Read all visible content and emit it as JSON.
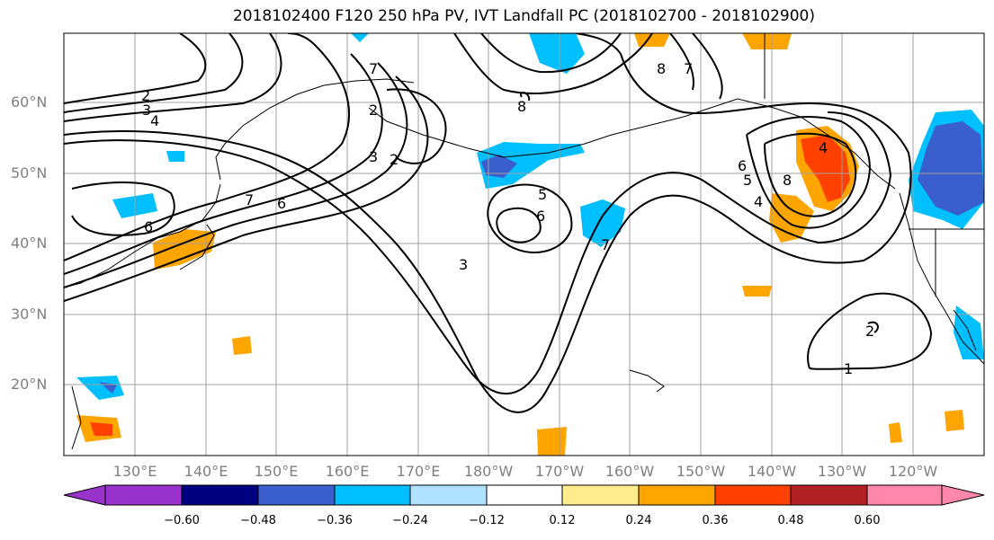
{
  "map": {
    "title": "2018102400 F120 250 hPa PV, IVT Landfall PC (2018102700 - 2018102900)",
    "lat_labels": [
      "60°N",
      "50°N",
      "40°N",
      "30°N",
      "20°N"
    ],
    "lon_labels": [
      "130°E",
      "140°E",
      "150°E",
      "160°E",
      "170°E",
      "180°W",
      "170°W",
      "160°W",
      "150°W",
      "140°W",
      "130°W",
      "120°W"
    ],
    "contour_labels": [
      "2",
      "3",
      "4",
      "7",
      "8",
      "8",
      "7",
      "2",
      "3",
      "2",
      "7",
      "6",
      "5",
      "6",
      "3",
      "7",
      "6",
      "5",
      "4",
      "8",
      "4",
      "2",
      "1",
      "6"
    ],
    "colorbar": {
      "ticks": [
        "−0.60",
        "−0.48",
        "−0.36",
        "−0.24",
        "−0.12",
        "0.12",
        "0.24",
        "0.36",
        "0.48",
        "0.60"
      ],
      "colors": [
        "#9933cc",
        "#000080",
        "#3a5fcd",
        "#00bfff",
        "#b0e2ff",
        "#ffffff",
        "#ffec8b",
        "#ffa500",
        "#ff4000",
        "#b22222",
        "#ff88aa"
      ]
    }
  }
}
